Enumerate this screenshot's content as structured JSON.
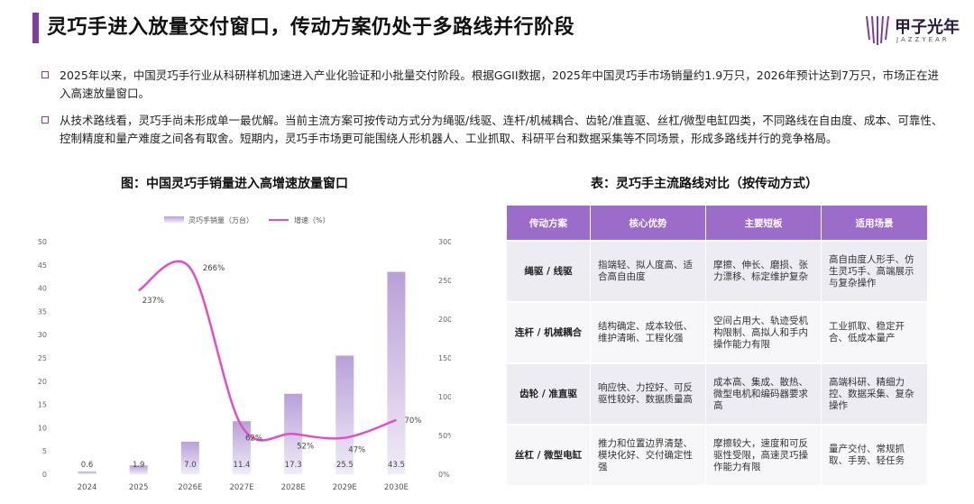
{
  "header": {
    "title": "灵巧手进入放量交付窗口，传动方案仍处于多路线并行阶段",
    "logo_cn": "甲子光年",
    "logo_en": "JAZZYEAR"
  },
  "bullets": [
    "2025年以来，中国灵巧手行业从科研样机加速进入产业化验证和小批量交付阶段。根据GGII数据，2025年中国灵巧手市场销量约1.9万只，2026年预计达到7万只，市场正在进入高速放量窗口。",
    "从技术路线看，灵巧手尚未形成单一最优解。当前主流方案可按传动方式分为绳驱/线驱、连杆/机械耦合、齿轮/准直驱、丝杠/微型电缸四类，不同路线在自由度、成本、可靠性、控制精度和量产难度之间各有取舍。短期内，灵巧手市场更可能围绕人形机器人、工业抓取、科研平台和数据采集等不同场景，形成多路线并行的竞争格局。"
  ],
  "chart_title": "图：中国灵巧手销量进入高增速放量窗口",
  "table_title": "表：灵巧手主流路线对比（按传动方式）",
  "chart_data": {
    "type": "bar",
    "categories": [
      "2024",
      "2025",
      "2026E",
      "2027E",
      "2028E",
      "2029E",
      "2030E"
    ],
    "series": [
      {
        "name": "灵巧手销量（万台）",
        "type": "bar",
        "axis": "left",
        "values": [
          0.6,
          1.9,
          7.0,
          11.4,
          17.3,
          25.5,
          43.5
        ],
        "labels": [
          "0.6",
          "1.9",
          "7.0",
          "11.4",
          "17.3",
          "25.5",
          "43.5"
        ]
      },
      {
        "name": "增速（%）",
        "type": "line",
        "axis": "right",
        "values": [
          null,
          237,
          266,
          62,
          52,
          47,
          70
        ],
        "labels": [
          "",
          "237%",
          "266%",
          "62%",
          "52%",
          "47%",
          "70%"
        ]
      }
    ],
    "y_left": {
      "min": 0,
      "max": 50,
      "ticks": [
        "0",
        "5",
        "10",
        "15",
        "20",
        "25",
        "30",
        "35",
        "40",
        "45",
        "50"
      ]
    },
    "y_right": {
      "min": 0,
      "max": 300,
      "ticks": [
        "0%",
        "50%",
        "100%",
        "150%",
        "200%",
        "250%",
        "300%"
      ]
    },
    "legend_position": "top",
    "grid": false,
    "colors": {
      "bar_top": "#b9a0d8",
      "bar_bottom": "#f1ecf8",
      "line": "#e14fc8"
    }
  },
  "table": {
    "headers": [
      "传动方案",
      "核心优势",
      "主要短板",
      "适用场景"
    ],
    "rows": [
      [
        "绳驱 / 线驱",
        "指端轻、拟人度高、适合高自由度",
        "摩擦、伸长、磨损、张力漂移、标定维护复杂",
        "高自由度人形手、仿生灵巧手、高端展示与复杂操作"
      ],
      [
        "连杆 / 机械耦合",
        "结构确定、成本较低、维护清晰、工程化强",
        "空间占用大、轨迹受机构限制、高拟人和手内操作能力有限",
        "工业抓取、稳定开合、低成本量产"
      ],
      [
        "齿轮 / 准直驱",
        "响应快、力控好、可反驱性较好、数据质量高",
        "成本高、集成、散热、微型电机和编码器要求高",
        "高端科研、精细力控、数据采集、复杂操作"
      ],
      [
        "丝杠 / 微型电缸",
        "推力和位置边界清楚、模块化好、交付确定性强",
        "摩擦较大，速度和可反驱性受限，高速灵巧操作能力有限",
        "量产交付、常规抓取、手势、轻任务"
      ]
    ]
  }
}
